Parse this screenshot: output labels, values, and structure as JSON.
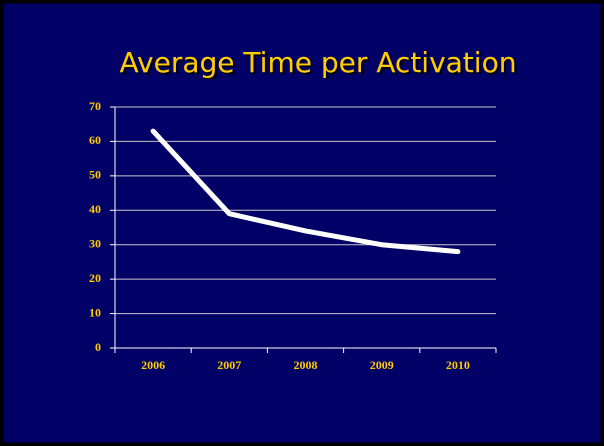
{
  "chart_data": {
    "type": "line",
    "title": "Average Time per Activation",
    "categories": [
      "2006",
      "2007",
      "2008",
      "2009",
      "2010"
    ],
    "series": [
      {
        "name": "Average Time per Activation",
        "color": "#ffffff",
        "values": [
          63,
          39,
          34,
          30,
          28
        ]
      }
    ],
    "ylim": [
      0,
      70
    ],
    "yticks": [
      0,
      10,
      20,
      30,
      40,
      50,
      60,
      70
    ],
    "grid": true,
    "legend": false
  }
}
